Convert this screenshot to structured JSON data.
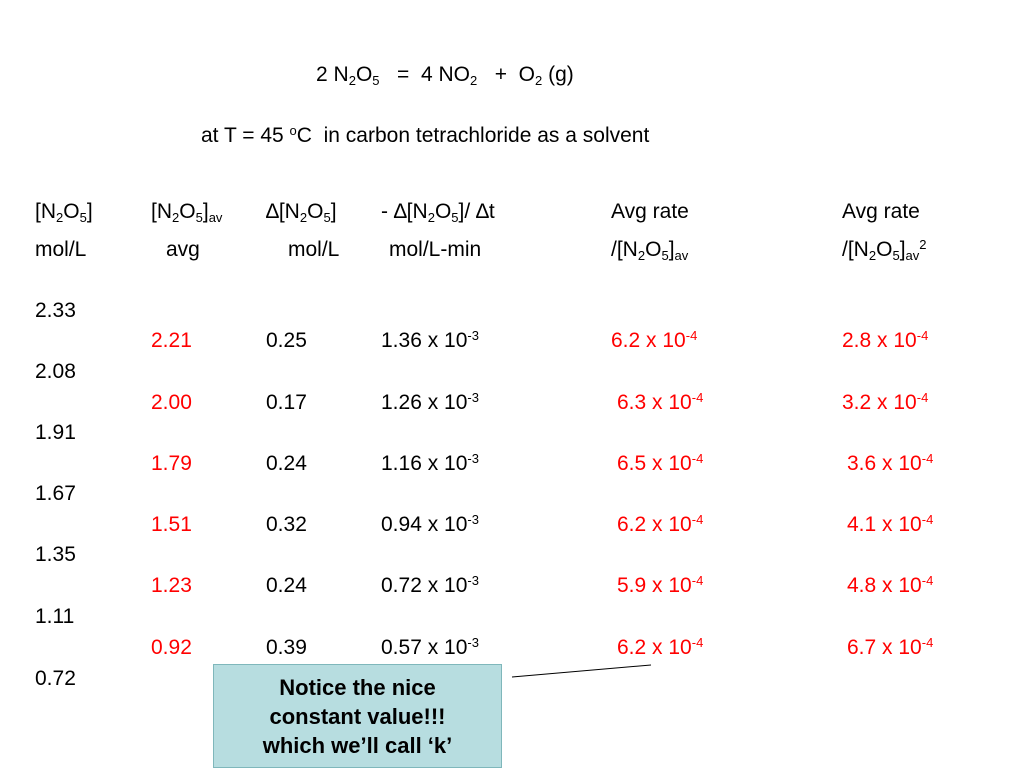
{
  "equation": {
    "coef1": "2 N",
    "s1": "2",
    "m1": "O",
    "s2": "5",
    "eq": "   =  4 NO",
    "s3": "2",
    "plus": "   +  O",
    "s4": "2",
    "tail": " (g)"
  },
  "conditions": {
    "pre": "at T = 45 ",
    "sup": "o",
    "post": "C  in carbon tetrachloride as a solvent"
  },
  "headers": {
    "col1_top": {
      "a": "[N",
      "s1": "2",
      "b": "O",
      "s2": "5",
      "c": "]"
    },
    "col1_bot": "mol/L",
    "col2_top": {
      "a": "[N",
      "s1": "2",
      "b": "O",
      "s2": "5",
      "c": "]",
      "s3": "av"
    },
    "col2_bot": "avg",
    "col3_top": {
      "a": "∆[N",
      "s1": "2",
      "b": "O",
      "s2": "5",
      "c": "]"
    },
    "col3_bot": "mol/L",
    "col4_top": {
      "a": "- ∆[N",
      "s1": "2",
      "b": "O",
      "s2": "5",
      "c": "]/ ∆t"
    },
    "col4_bot": "mol/L-min",
    "col5_top": "Avg rate",
    "col5_bot": {
      "a": "/[N",
      "s1": "2",
      "b": "O",
      "s2": "5",
      "c": "]",
      "s3": "av"
    },
    "col6_top": "Avg rate",
    "col6_bot": {
      "a": "/[N",
      "s1": "2",
      "b": "O",
      "s2": "5",
      "c": "]",
      "s3": "av",
      "sup": "2"
    }
  },
  "concentrations": [
    "2.33",
    "2.08",
    "1.91",
    "1.67",
    "1.35",
    "1.11",
    "0.72"
  ],
  "rows": [
    {
      "avg": "2.21",
      "delta": "0.25",
      "rate": "1.36 x 10",
      "rate_exp": "-3",
      "r1": "6.2 x 10",
      "r1_exp": "-4",
      "r2": "2.8 x 10",
      "r2_exp": "-4"
    },
    {
      "avg": "2.00",
      "delta": "0.17",
      "rate": "1.26 x 10",
      "rate_exp": "-3",
      "r1": "6.3 x 10",
      "r1_exp": "-4",
      "r2": "3.2 x 10",
      "r2_exp": "-4"
    },
    {
      "avg": "1.79",
      "delta": "0.24",
      "rate": "1.16 x 10",
      "rate_exp": "-3",
      "r1": "6.5 x 10",
      "r1_exp": "-4",
      "r2": "3.6 x 10",
      "r2_exp": "-4"
    },
    {
      "avg": "1.51",
      "delta": "0.32",
      "rate": "0.94 x 10",
      "rate_exp": "-3",
      "r1": "6.2 x 10",
      "r1_exp": "-4",
      "r2": "4.1 x 10",
      "r2_exp": "-4"
    },
    {
      "avg": "1.23",
      "delta": "0.24",
      "rate": "0.72 x 10",
      "rate_exp": "-3",
      "r1": "5.9 x 10",
      "r1_exp": "-4",
      "r2": "4.8 x 10",
      "r2_exp": "-4"
    },
    {
      "avg": "0.92",
      "delta": "0.39",
      "rate": "0.57 x 10",
      "rate_exp": "-3",
      "r1": "6.2 x 10",
      "r1_exp": "-4",
      "r2": "6.7 x 10",
      "r2_exp": "-4"
    }
  ],
  "note": {
    "line1": "Notice the nice",
    "line2": "constant value!!!",
    "line3": "which we’ll call ‘k’"
  },
  "colors": {
    "highlight": "#ff0000",
    "note_bg": "#b7dde0"
  }
}
